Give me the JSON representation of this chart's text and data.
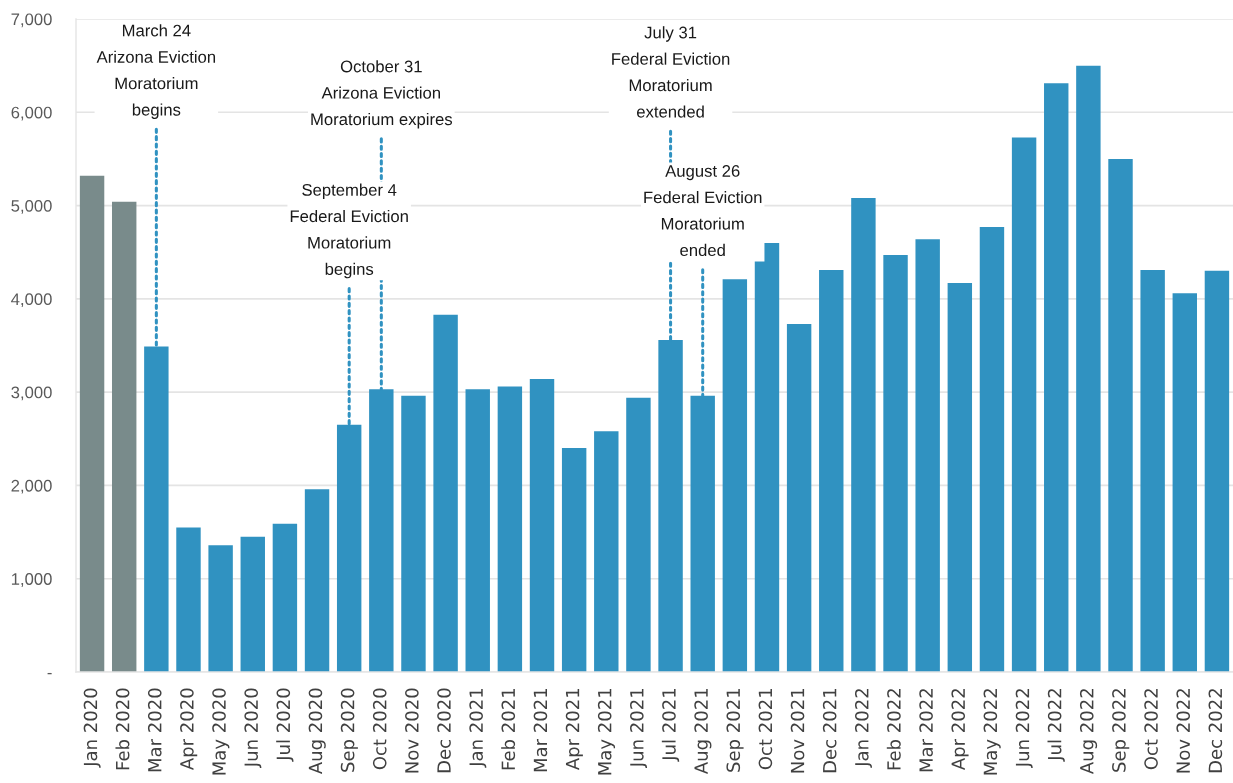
{
  "chart_data": {
    "type": "bar",
    "categories": [
      "Jan 2020",
      "Feb 2020",
      "Mar 2020",
      "Apr 2020",
      "May 2020",
      "Jun 2020",
      "Jul 2020",
      "Aug 2020",
      "Sep 2020",
      "Oct 2020",
      "Nov 2020",
      "Dec 2020",
      "Jan 2021",
      "Feb 2021",
      "Mar 2021",
      "Apr 2021",
      "May 2021",
      "Jun 2021",
      "Jul 2021",
      "Aug 2021",
      "Sep 2021",
      "Oct 2021",
      "Nov 2021",
      "Dec 2021",
      "Jan 2022",
      "Feb 2022",
      "Mar 2022",
      "Apr 2022",
      "May 2022",
      "Jun 2022",
      "Jul 2022",
      "Aug 2022",
      "Sep 2022",
      "Oct 2022",
      "Nov 2022",
      "Dec 2022"
    ],
    "values": [
      5320,
      5040,
      3490,
      1550,
      1360,
      1450,
      1590,
      1960,
      2650,
      3030,
      2960,
      3830,
      3030,
      3060,
      3140,
      2400,
      2580,
      2940,
      3560,
      2960,
      4210,
      4600,
      3730,
      4310,
      5080,
      4470,
      4640,
      4170,
      4770,
      5730,
      6310,
      6500,
      5500,
      4310,
      4060,
      4300
    ],
    "colors": [
      "#798b8b",
      "#798b8b",
      "#3092c1",
      "#3092c1",
      "#3092c1",
      "#3092c1",
      "#3092c1",
      "#3092c1",
      "#3092c1",
      "#3092c1",
      "#3092c1",
      "#3092c1",
      "#3092c1",
      "#3092c1",
      "#3092c1",
      "#3092c1",
      "#3092c1",
      "#3092c1",
      "#3092c1",
      "#3092c1",
      "#3092c1",
      "#3092c1",
      "#3092c1",
      "#3092c1",
      "#3092c1",
      "#3092c1",
      "#3092c1",
      "#3092c1",
      "#3092c1",
      "#3092c1",
      "#3092c1",
      "#3092c1",
      "#3092c1",
      "#3092c1",
      "#3092c1",
      "#3092c1"
    ],
    "ylim": [
      0,
      7000
    ],
    "yticks": [
      {
        "value": 0,
        "label": "-"
      },
      {
        "value": 1000,
        "label": "1,000"
      },
      {
        "value": 2000,
        "label": "2,000"
      },
      {
        "value": 3000,
        "label": "3,000"
      },
      {
        "value": 4000,
        "label": "4,000"
      },
      {
        "value": 5000,
        "label": "5,000"
      },
      {
        "value": 6000,
        "label": "6,000"
      },
      {
        "value": 7000,
        "label": "7,000"
      }
    ],
    "grid": "y",
    "annotations": [
      {
        "text": "March 24\nArizona Eviction\nMoratorium\nbegins",
        "x": "Mar 2020",
        "y": 3490
      },
      {
        "text": "October 31\nArizona Eviction\nMoratorium expires",
        "x": "Oct 2020",
        "y": 3030
      },
      {
        "text": "September 4\nFederal Eviction\nMoratorium\nbegins",
        "x": "Sep 2020",
        "y": 2650
      },
      {
        "text": "July 31\nFederal Eviction\nMoratorium\nextended",
        "x": "Jul 2021",
        "y": 3560
      },
      {
        "text": "August 26\nFederal Eviction\nMoratorium\nended",
        "x": "Aug 2021",
        "y": 2960
      }
    ]
  }
}
